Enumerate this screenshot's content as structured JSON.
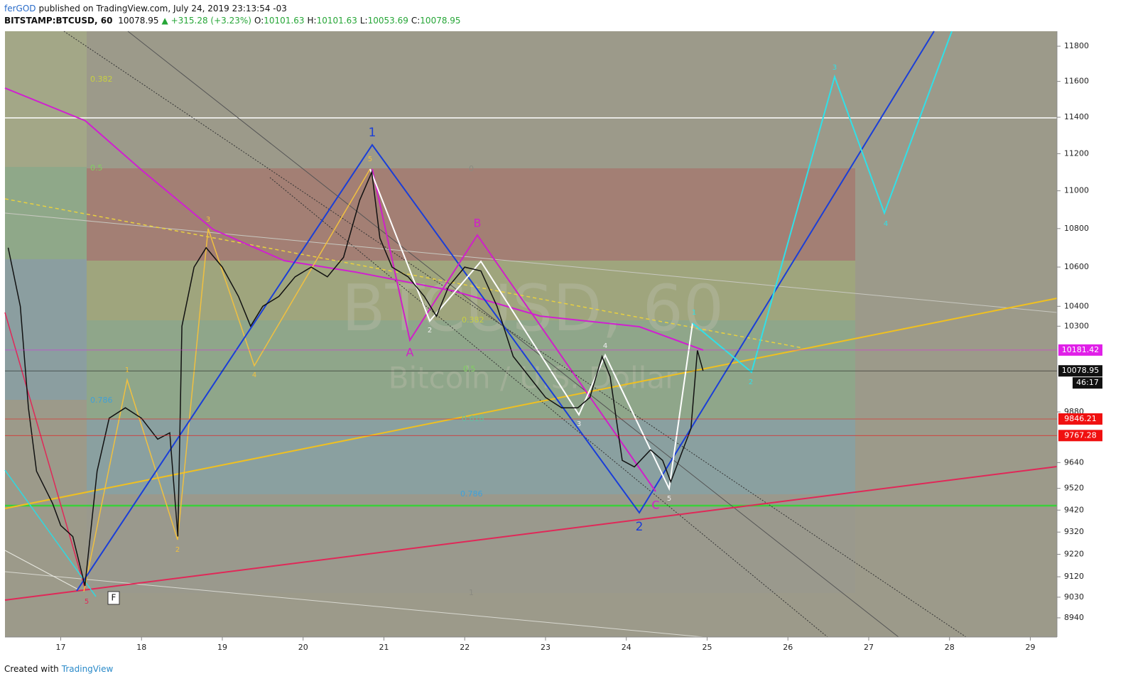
{
  "header": {
    "publisher": "ferGOD",
    "published": "published on TradingView.com, July 24, 2019 23:13:54 -03",
    "symbol": "BITSTAMP:BTCUSD, 60",
    "last": "10078.95",
    "change": "▲ +315.28 (+3.23%)",
    "ohlc": [
      {
        "label": "O:",
        "value": "10101.63"
      },
      {
        "label": "H:",
        "value": "10101.63"
      },
      {
        "label": "L:",
        "value": "10053.69"
      },
      {
        "label": "C:",
        "value": "10078.95"
      }
    ]
  },
  "chart_data": {
    "type": "line",
    "watermark": [
      "BTCUSD, 60",
      "Bitcoin / U.S. Dollar"
    ],
    "x": [
      16.35,
      16.5,
      16.6,
      16.7,
      16.9,
      17.0,
      17.15,
      17.3,
      17.45,
      17.6,
      17.8,
      18.0,
      18.2,
      18.35,
      18.45,
      18.5,
      18.65,
      18.8,
      19.0,
      19.2,
      19.35,
      19.5,
      19.7,
      19.9,
      20.1,
      20.3,
      20.5,
      20.7,
      20.85,
      20.95,
      21.1,
      21.3,
      21.5,
      21.65,
      21.8,
      22.0,
      22.2,
      22.4,
      22.6,
      22.8,
      23.0,
      23.2,
      23.4,
      23.55,
      23.7,
      23.8,
      23.95,
      24.1,
      24.3,
      24.45,
      24.55,
      24.7,
      24.8,
      24.88,
      24.95
    ],
    "values": [
      10700,
      10400,
      9900,
      9600,
      9450,
      9350,
      9300,
      9080,
      9600,
      9850,
      9900,
      9850,
      9750,
      9780,
      9300,
      10300,
      10600,
      10700,
      10600,
      10450,
      10300,
      10400,
      10450,
      10550,
      10600,
      10550,
      10650,
      10950,
      11100,
      10750,
      10600,
      10550,
      10450,
      10350,
      10500,
      10600,
      10580,
      10400,
      10150,
      10050,
      9950,
      9900,
      9900,
      9950,
      10150,
      10050,
      9650,
      9620,
      9700,
      9650,
      9550,
      9700,
      9800,
      10180,
      10079
    ],
    "color": "#111111",
    "log_scale": true,
    "xlim": [
      16.31,
      29.33
    ],
    "xticks": [
      17,
      18,
      19,
      20,
      21,
      22,
      23,
      24,
      25,
      26,
      27,
      28,
      29
    ],
    "ylim": [
      8857,
      11886
    ],
    "yticks": [
      8940,
      9030,
      9120,
      9220,
      9320,
      9420,
      9520,
      9640,
      9880,
      10300,
      10400,
      10600,
      10800,
      11000,
      11200,
      11400,
      11600,
      11800
    ],
    "price_labels": [
      {
        "value": 10181.42,
        "color": "#e020e8"
      },
      {
        "value": 10078.95,
        "color": "#111111"
      },
      {
        "value": 9846.21,
        "color": "#f01010"
      },
      {
        "value": 9767.28,
        "color": "#f01010"
      }
    ],
    "countdown": "46:17",
    "wave_labels": [
      "1",
      "2",
      "A",
      "B",
      "C",
      "5",
      "3",
      "4",
      "2",
      "1",
      "5",
      "2",
      "1",
      "3",
      "4",
      "5",
      "3",
      "4",
      "2",
      "F"
    ],
    "fib_labels": [
      "0.382",
      "0.5",
      "0.786",
      "0",
      "0.382",
      "0.5",
      "0.618",
      "0.786",
      "1"
    ]
  },
  "footer": {
    "text": "Created with",
    "brand": "TradingView"
  }
}
